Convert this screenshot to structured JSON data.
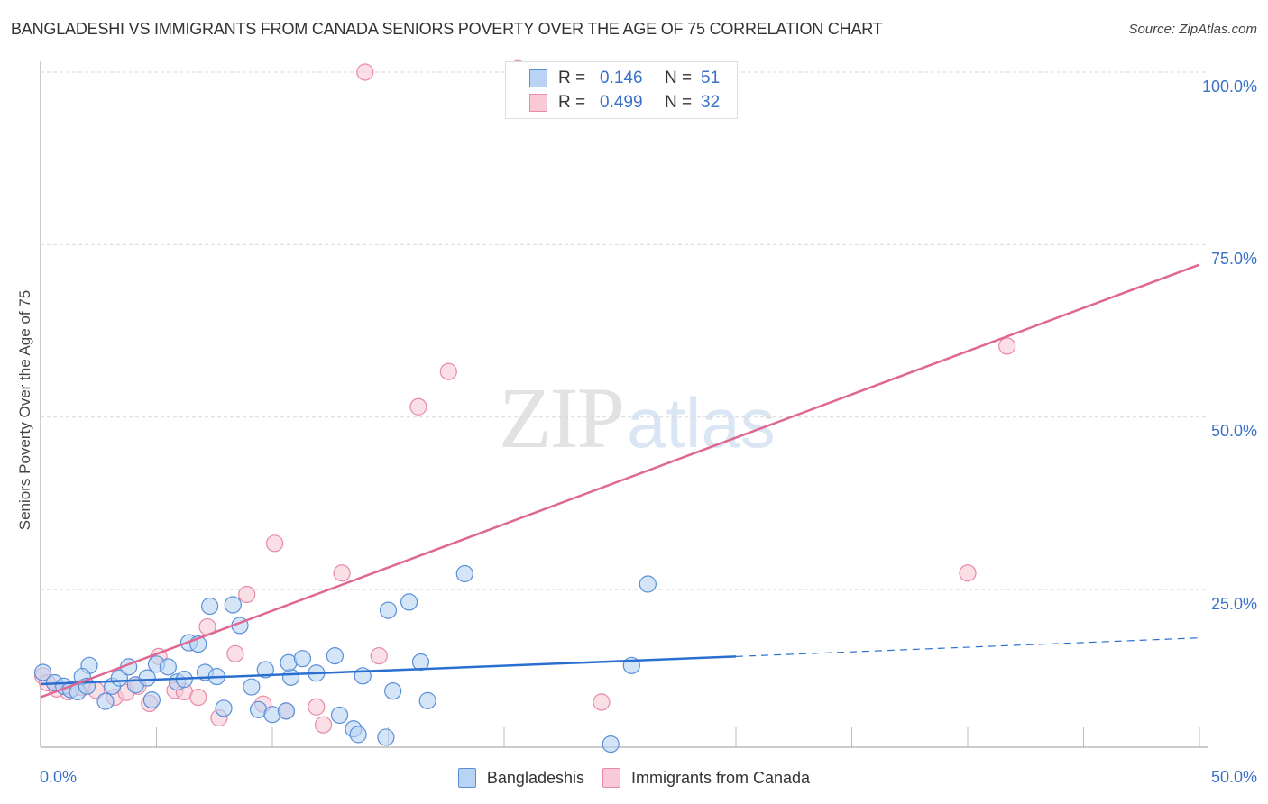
{
  "header": {
    "title": "BANGLADESHI VS IMMIGRANTS FROM CANADA SENIORS POVERTY OVER THE AGE OF 75 CORRELATION CHART",
    "source": "Source: ZipAtlas.com"
  },
  "axes": {
    "ylabel": "Seniors Poverty Over the Age of 75",
    "y_ticks": [
      "100.0%",
      "75.0%",
      "50.0%",
      "25.0%"
    ],
    "x_ticks": [
      "0.0%",
      "50.0%"
    ]
  },
  "legend_top": {
    "rows": [
      {
        "r_label": "R =",
        "r_value": "0.146",
        "n_label": "N =",
        "n_value": "51"
      },
      {
        "r_label": "R =",
        "r_value": "0.499",
        "n_label": "N =",
        "n_value": "32"
      }
    ]
  },
  "legend_bottom": {
    "items": [
      {
        "label": "Bangladeshis"
      },
      {
        "label": "Immigrants from Canada"
      }
    ]
  },
  "watermark": {
    "zip": "ZIP",
    "atlas": "atlas"
  },
  "colors": {
    "blue_fill": "#b8d3f3",
    "blue_stroke": "#5a8fd8",
    "blue_line": "#2a6fd0",
    "pink_fill": "#f9c9d7",
    "pink_stroke": "#e88aa6",
    "pink_line": "#e06890",
    "tick_text": "#3a72c8"
  },
  "chart_data": {
    "type": "scatter",
    "title": "BANGLADESHI VS IMMIGRANTS FROM CANADA SENIORS POVERTY OVER THE AGE OF 75 CORRELATION CHART",
    "xlabel": "",
    "ylabel": "Seniors Poverty Over the Age of 75",
    "xlim": [
      0,
      50
    ],
    "ylim": [
      0,
      100
    ],
    "x_tick_labels": [
      "0.0%",
      "50.0%"
    ],
    "y_tick_labels": [
      "25.0%",
      "50.0%",
      "75.0%",
      "100.0%"
    ],
    "grid": {
      "horizontal": true,
      "style": "dashed"
    },
    "legend_position": "bottom",
    "series": [
      {
        "name": "Bangladeshis",
        "color": "#5a8fd8",
        "R": 0.146,
        "N": 51,
        "trend": {
          "x": [
            0,
            30,
            50
          ],
          "y": [
            11.3,
            15.3,
            18.0
          ],
          "dashed_after_x": 30
        },
        "points": [
          {
            "x": 0.1,
            "y": 13.0
          },
          {
            "x": 0.6,
            "y": 11.5
          },
          {
            "x": 1.0,
            "y": 11.0
          },
          {
            "x": 1.3,
            "y": 10.5
          },
          {
            "x": 1.6,
            "y": 10.2
          },
          {
            "x": 2.1,
            "y": 14.0
          },
          {
            "x": 1.8,
            "y": 12.4
          },
          {
            "x": 2.8,
            "y": 8.8
          },
          {
            "x": 3.1,
            "y": 11.0
          },
          {
            "x": 3.4,
            "y": 12.2
          },
          {
            "x": 3.8,
            "y": 13.8
          },
          {
            "x": 4.1,
            "y": 11.2
          },
          {
            "x": 4.6,
            "y": 12.2
          },
          {
            "x": 4.8,
            "y": 9.0
          },
          {
            "x": 5.0,
            "y": 14.2
          },
          {
            "x": 5.5,
            "y": 13.8
          },
          {
            "x": 5.9,
            "y": 11.6
          },
          {
            "x": 6.2,
            "y": 12.0
          },
          {
            "x": 6.4,
            "y": 17.3
          },
          {
            "x": 6.8,
            "y": 17.1
          },
          {
            "x": 7.1,
            "y": 13.0
          },
          {
            "x": 7.3,
            "y": 22.6
          },
          {
            "x": 7.6,
            "y": 12.4
          },
          {
            "x": 7.9,
            "y": 7.8
          },
          {
            "x": 8.3,
            "y": 22.8
          },
          {
            "x": 8.6,
            "y": 19.8
          },
          {
            "x": 9.1,
            "y": 10.9
          },
          {
            "x": 9.4,
            "y": 7.6
          },
          {
            "x": 9.7,
            "y": 13.4
          },
          {
            "x": 10.0,
            "y": 6.9
          },
          {
            "x": 10.6,
            "y": 7.4
          },
          {
            "x": 10.8,
            "y": 12.3
          },
          {
            "x": 10.7,
            "y": 14.4
          },
          {
            "x": 11.3,
            "y": 15.0
          },
          {
            "x": 11.9,
            "y": 12.9
          },
          {
            "x": 12.7,
            "y": 15.4
          },
          {
            "x": 12.9,
            "y": 6.8
          },
          {
            "x": 13.5,
            "y": 4.8
          },
          {
            "x": 13.7,
            "y": 4.0
          },
          {
            "x": 13.9,
            "y": 12.5
          },
          {
            "x": 14.9,
            "y": 3.6
          },
          {
            "x": 15.0,
            "y": 22.0
          },
          {
            "x": 15.2,
            "y": 10.3
          },
          {
            "x": 15.9,
            "y": 23.2
          },
          {
            "x": 16.4,
            "y": 14.5
          },
          {
            "x": 16.7,
            "y": 8.9
          },
          {
            "x": 18.3,
            "y": 27.3
          },
          {
            "x": 24.6,
            "y": 2.6
          },
          {
            "x": 25.5,
            "y": 14.0
          },
          {
            "x": 26.2,
            "y": 25.8
          },
          {
            "x": 2.0,
            "y": 11.0
          }
        ]
      },
      {
        "name": "Immigrants from Canada",
        "color": "#e88aa6",
        "R": 0.499,
        "N": 32,
        "trend": {
          "x": [
            0,
            50
          ],
          "y": [
            9.4,
            72.1
          ]
        },
        "points": [
          {
            "x": 0.1,
            "y": 12.5
          },
          {
            "x": 0.7,
            "y": 10.6
          },
          {
            "x": 1.8,
            "y": 10.8
          },
          {
            "x": 2.4,
            "y": 10.4
          },
          {
            "x": 3.2,
            "y": 9.4
          },
          {
            "x": 3.7,
            "y": 10.1
          },
          {
            "x": 4.2,
            "y": 11.0
          },
          {
            "x": 4.7,
            "y": 8.5
          },
          {
            "x": 5.1,
            "y": 15.3
          },
          {
            "x": 5.8,
            "y": 10.4
          },
          {
            "x": 6.2,
            "y": 10.2
          },
          {
            "x": 6.8,
            "y": 9.4
          },
          {
            "x": 7.2,
            "y": 19.6
          },
          {
            "x": 7.7,
            "y": 6.4
          },
          {
            "x": 8.4,
            "y": 15.7
          },
          {
            "x": 8.9,
            "y": 24.3
          },
          {
            "x": 9.6,
            "y": 8.4
          },
          {
            "x": 10.1,
            "y": 31.7
          },
          {
            "x": 10.6,
            "y": 7.4
          },
          {
            "x": 11.9,
            "y": 8.0
          },
          {
            "x": 12.2,
            "y": 5.4
          },
          {
            "x": 13.0,
            "y": 27.4
          },
          {
            "x": 14.6,
            "y": 15.4
          },
          {
            "x": 16.3,
            "y": 51.5
          },
          {
            "x": 17.6,
            "y": 56.6
          },
          {
            "x": 14.0,
            "y": 100.0
          },
          {
            "x": 20.6,
            "y": 100.5
          },
          {
            "x": 24.2,
            "y": 8.7
          },
          {
            "x": 40.0,
            "y": 27.4
          },
          {
            "x": 41.7,
            "y": 60.3
          },
          {
            "x": 0.3,
            "y": 11.5
          },
          {
            "x": 1.2,
            "y": 10.2
          }
        ]
      }
    ]
  }
}
